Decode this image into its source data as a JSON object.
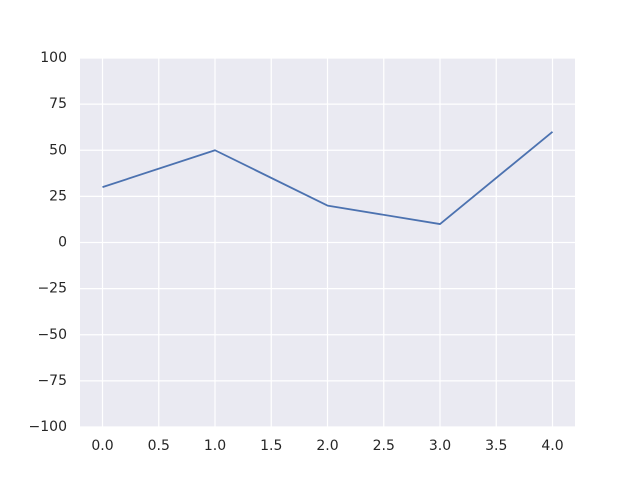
{
  "chart_data": {
    "type": "line",
    "x": [
      0,
      1,
      2,
      3,
      4
    ],
    "series": [
      {
        "color": "#4c72b0",
        "values": [
          30,
          50,
          20,
          10,
          60
        ]
      }
    ],
    "xlim": [
      -0.2,
      4.2
    ],
    "xticks": [
      {
        "value": 0,
        "label": "0.0"
      },
      0.5,
      {
        "value": 1,
        "label": "1.0"
      },
      1.5,
      {
        "value": 2,
        "label": "2.0"
      },
      2.5,
      {
        "value": 3,
        "label": "3.0"
      },
      3.5,
      {
        "value": 4,
        "label": "4.0"
      }
    ],
    "ylim": [
      -100,
      100
    ],
    "yticks": [
      {
        "value": -100,
        "label": "−100"
      },
      {
        "value": -75,
        "label": "−75"
      },
      {
        "value": -50,
        "label": "−50"
      },
      {
        "value": -25,
        "label": "−25"
      },
      0,
      25,
      50,
      75,
      100
    ],
    "grid": true,
    "background": "#eaeaf2"
  }
}
